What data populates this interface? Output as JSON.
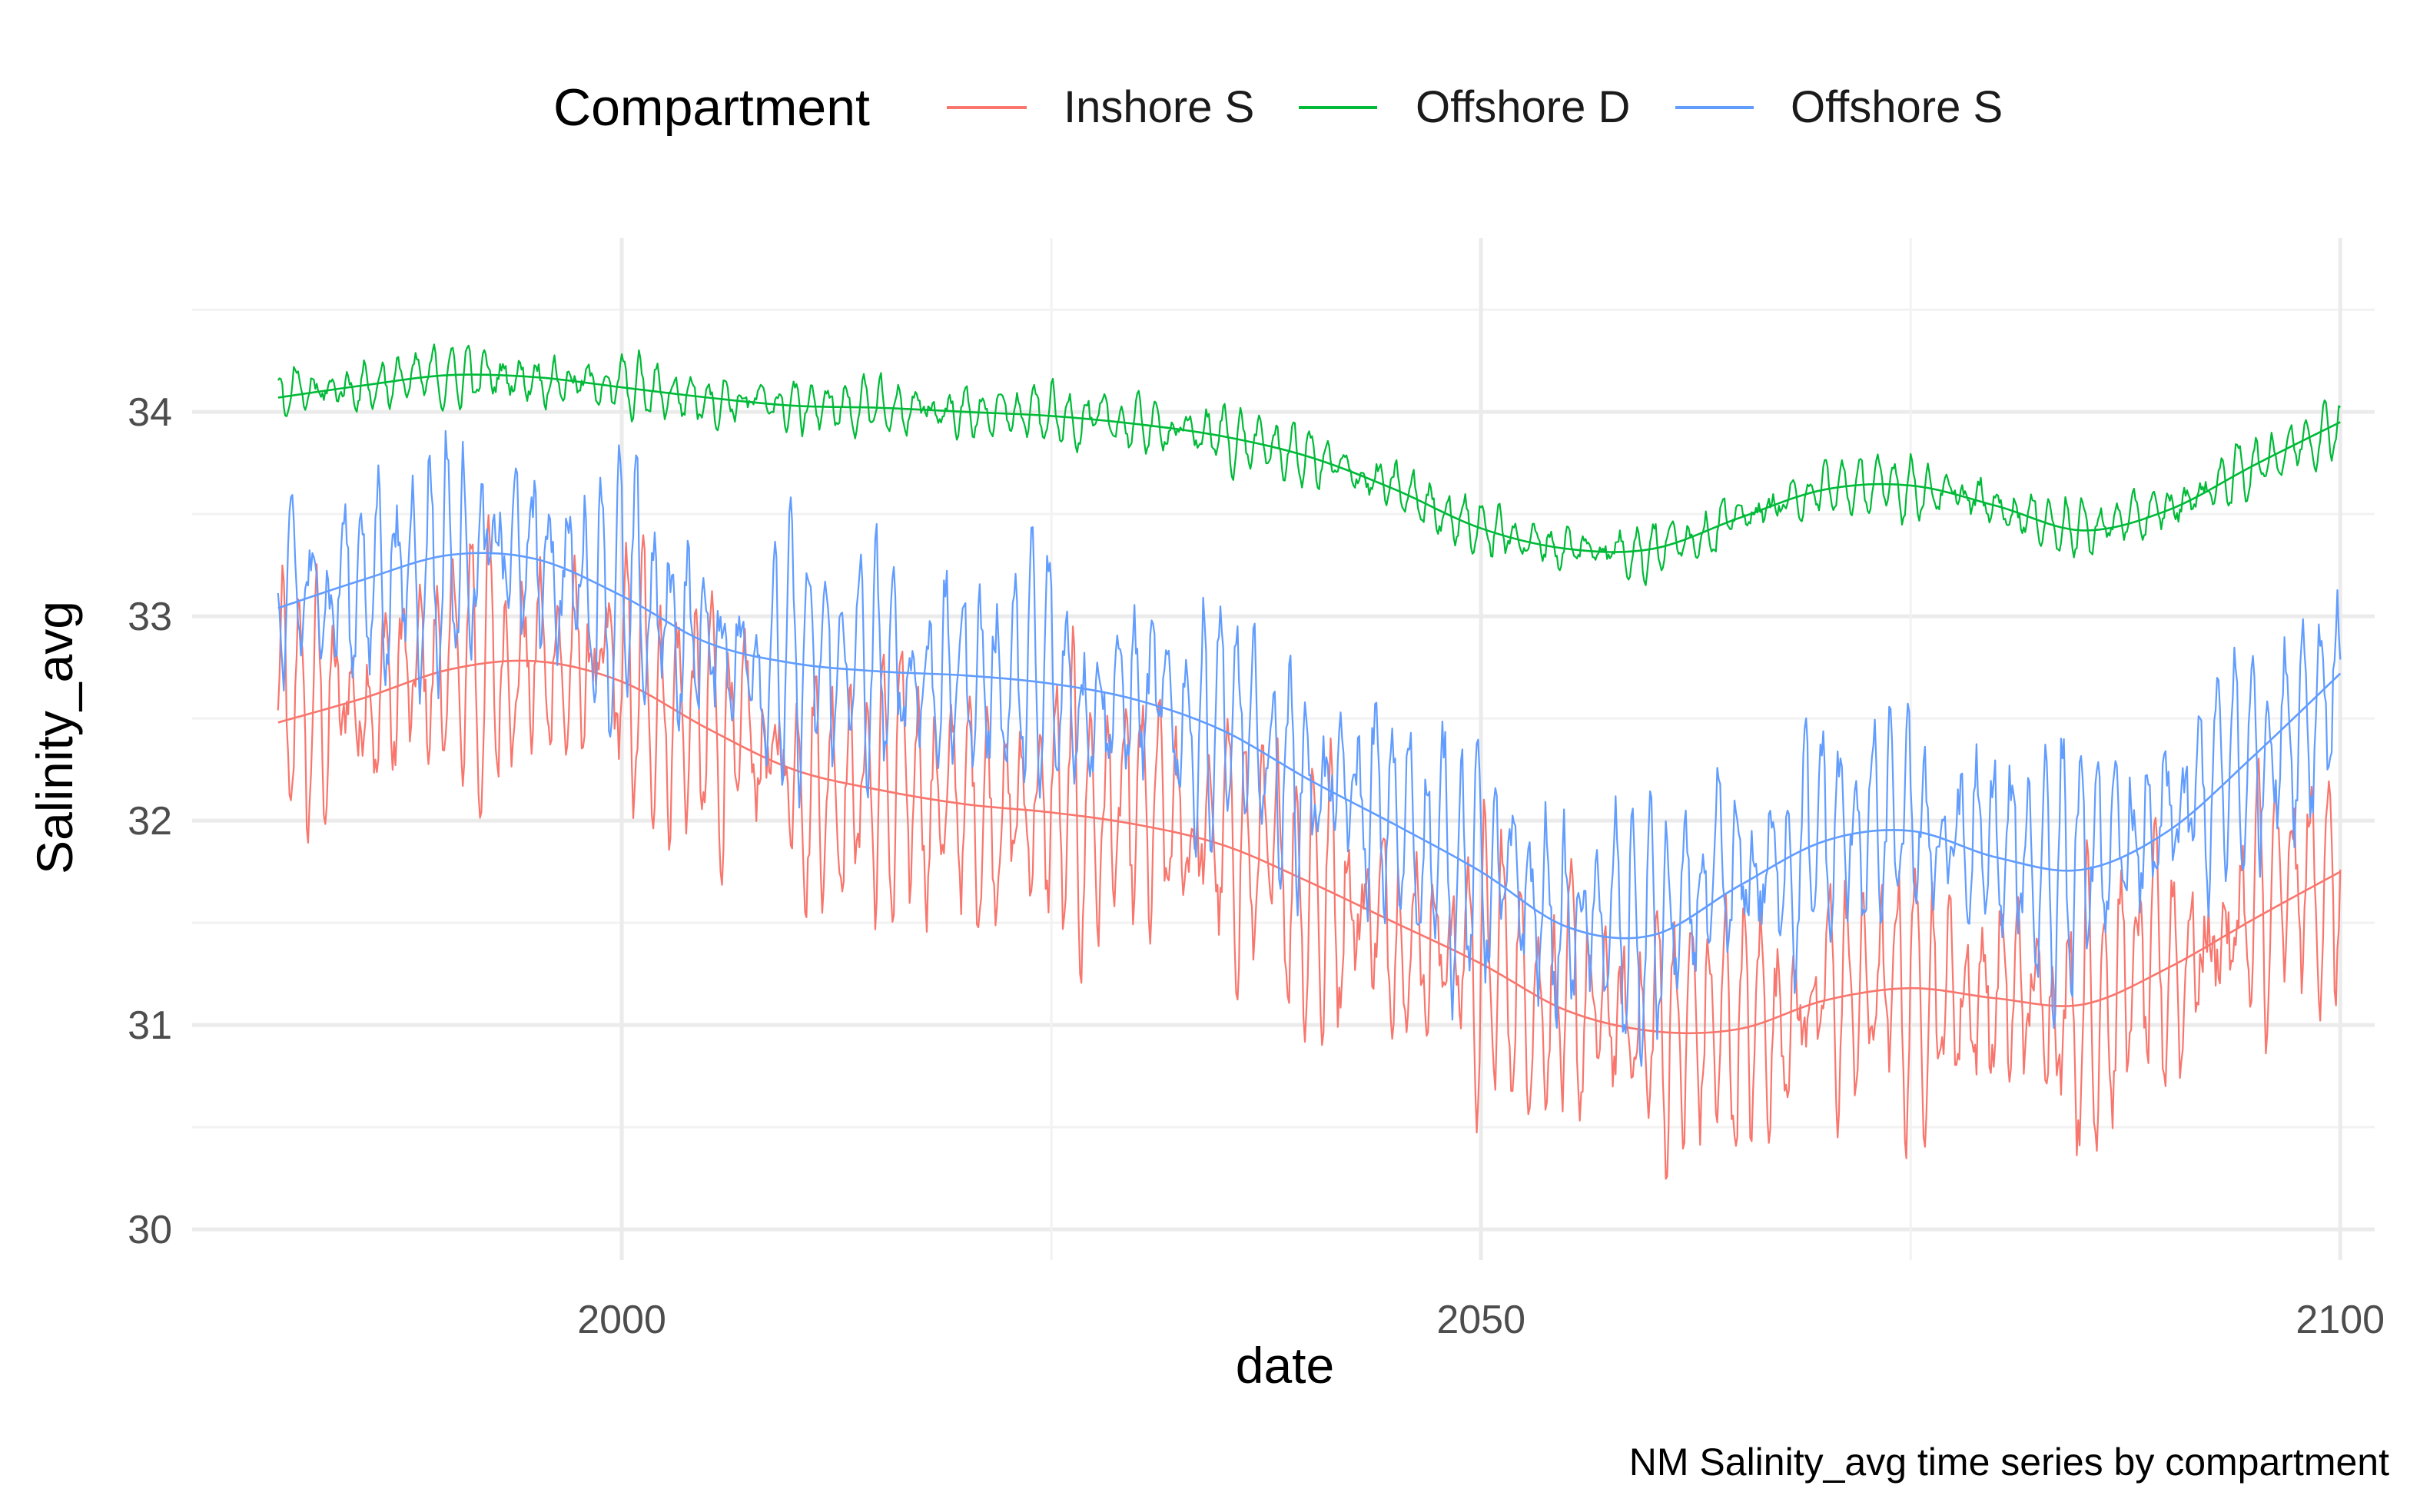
{
  "chart_data": {
    "type": "line",
    "caption": "NM Salinity_avg time series by compartment",
    "xlabel": "date",
    "ylabel": "Salinity_avg",
    "xlim": [
      1975,
      2102
    ],
    "ylim": [
      29.85,
      34.85
    ],
    "x_ticks": [
      2000,
      2050,
      2100
    ],
    "y_ticks": [
      30,
      31,
      32,
      33,
      34
    ],
    "grid": true,
    "legend": {
      "title": "Compartment",
      "placement": "top"
    },
    "x_start": 1980,
    "x_end": 2100,
    "series": [
      {
        "name": "Inshore S",
        "color": "#F8766D",
        "seasonal_amplitude": 0.55,
        "trend": [
          [
            1980,
            32.48
          ],
          [
            1985,
            32.6
          ],
          [
            1990,
            32.74
          ],
          [
            1995,
            32.78
          ],
          [
            2000,
            32.68
          ],
          [
            2005,
            32.45
          ],
          [
            2010,
            32.25
          ],
          [
            2015,
            32.15
          ],
          [
            2020,
            32.08
          ],
          [
            2025,
            32.04
          ],
          [
            2030,
            31.98
          ],
          [
            2035,
            31.88
          ],
          [
            2040,
            31.7
          ],
          [
            2045,
            31.5
          ],
          [
            2050,
            31.3
          ],
          [
            2055,
            31.07
          ],
          [
            2060,
            30.97
          ],
          [
            2065,
            30.98
          ],
          [
            2070,
            31.12
          ],
          [
            2075,
            31.18
          ],
          [
            2080,
            31.13
          ],
          [
            2085,
            31.1
          ],
          [
            2090,
            31.28
          ],
          [
            2095,
            31.52
          ],
          [
            2100,
            31.75
          ]
        ]
      },
      {
        "name": "Offshore D",
        "color": "#00BA38",
        "seasonal_amplitude": 0.12,
        "trend": [
          [
            1980,
            34.07
          ],
          [
            1985,
            34.13
          ],
          [
            1990,
            34.18
          ],
          [
            1995,
            34.17
          ],
          [
            2000,
            34.12
          ],
          [
            2005,
            34.07
          ],
          [
            2010,
            34.03
          ],
          [
            2015,
            34.02
          ],
          [
            2020,
            34.0
          ],
          [
            2025,
            33.98
          ],
          [
            2030,
            33.94
          ],
          [
            2035,
            33.88
          ],
          [
            2040,
            33.78
          ],
          [
            2045,
            33.62
          ],
          [
            2050,
            33.43
          ],
          [
            2055,
            33.33
          ],
          [
            2060,
            33.33
          ],
          [
            2065,
            33.48
          ],
          [
            2070,
            33.62
          ],
          [
            2075,
            33.64
          ],
          [
            2080,
            33.54
          ],
          [
            2085,
            33.42
          ],
          [
            2090,
            33.52
          ],
          [
            2095,
            33.74
          ],
          [
            2100,
            33.95
          ]
        ]
      },
      {
        "name": "Offshore S",
        "color": "#619CFF",
        "seasonal_amplitude": 0.5,
        "trend": [
          [
            1980,
            33.04
          ],
          [
            1985,
            33.18
          ],
          [
            1990,
            33.3
          ],
          [
            1995,
            33.28
          ],
          [
            2000,
            33.1
          ],
          [
            2005,
            32.87
          ],
          [
            2010,
            32.77
          ],
          [
            2015,
            32.73
          ],
          [
            2020,
            32.71
          ],
          [
            2025,
            32.67
          ],
          [
            2030,
            32.59
          ],
          [
            2035,
            32.44
          ],
          [
            2040,
            32.2
          ],
          [
            2045,
            31.98
          ],
          [
            2050,
            31.75
          ],
          [
            2055,
            31.48
          ],
          [
            2060,
            31.44
          ],
          [
            2065,
            31.68
          ],
          [
            2070,
            31.9
          ],
          [
            2075,
            31.95
          ],
          [
            2080,
            31.82
          ],
          [
            2085,
            31.76
          ],
          [
            2090,
            31.95
          ],
          [
            2095,
            32.32
          ],
          [
            2100,
            32.72
          ]
        ]
      }
    ]
  }
}
